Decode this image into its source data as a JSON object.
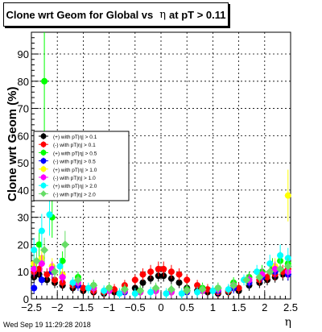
{
  "header": {
    "title_prefix": "Clone wrt Geom for Global vs",
    "title_symbol": "η",
    "title_suffix": "at pT > 0.11"
  },
  "footer": {
    "timestamp": "Wed Sep 19 11:29:28 2018"
  },
  "chart_data": {
    "type": "scatter",
    "title": "Clone wrt Geom for Global vs η at pT > 0.11",
    "xlabel": "η",
    "ylabel": "Clone wrt Geom (%)",
    "xlim": [
      -2.5,
      2.5
    ],
    "ylim": [
      0,
      98
    ],
    "xticks": [
      -2.5,
      -2,
      -1.5,
      -1,
      -0.5,
      0,
      0.5,
      1,
      1.5,
      2,
      2.5
    ],
    "xtick_labels": [
      "−2.5",
      "−2",
      "−1.5",
      "−1",
      "−0.5",
      "0",
      "0.5",
      "1",
      "1.5",
      "2",
      "2.5"
    ],
    "yticks": [
      0,
      10,
      20,
      30,
      40,
      50,
      60,
      70,
      80,
      90
    ],
    "ytick_labels": [
      "0",
      "10",
      "20",
      "30",
      "40",
      "50",
      "60",
      "70",
      "80",
      "90"
    ],
    "grid": true,
    "legend_placement": "center-left",
    "series": [
      {
        "name": "(+) with pT|η| > 0.1",
        "color": "#000000",
        "marker": "circle",
        "x": [
          -2.45,
          -2.35,
          -2.2,
          -2.05,
          -1.9,
          -1.7,
          -1.5,
          -1.3,
          -1.1,
          -0.9,
          -0.7,
          -0.5,
          -0.35,
          -0.2,
          -0.05,
          0.05,
          0.2,
          0.35,
          0.5,
          0.7,
          0.9,
          1.1,
          1.3,
          1.5,
          1.7,
          1.9,
          2.05,
          2.2,
          2.35,
          2.45
        ],
        "y": [
          8,
          9,
          7,
          6,
          5,
          4,
          3,
          2.5,
          2,
          2.5,
          3,
          4,
          6,
          7.5,
          8.5,
          8.5,
          7.5,
          6,
          4,
          3,
          2.5,
          2,
          2.5,
          3,
          5,
          6,
          7,
          8,
          9,
          9
        ]
      },
      {
        "name": "(-) with pT|η| > 0.1",
        "color": "#ff0000",
        "marker": "circle",
        "x": [
          -2.45,
          -2.35,
          -2.2,
          -2.05,
          -1.9,
          -1.7,
          -1.5,
          -1.3,
          -1.1,
          -0.9,
          -0.7,
          -0.5,
          -0.35,
          -0.2,
          -0.05,
          0.05,
          0.2,
          0.35,
          0.5,
          0.7,
          0.9,
          1.1,
          1.3,
          1.5,
          1.7,
          1.9,
          2.05,
          2.2,
          2.35,
          2.45
        ],
        "y": [
          10,
          11,
          9,
          7,
          6,
          5,
          4,
          3,
          2.5,
          3.5,
          5,
          7,
          9,
          10,
          11,
          11,
          10,
          9,
          7,
          5,
          3.5,
          2.5,
          3,
          4,
          6,
          7,
          8,
          9,
          10,
          11
        ]
      },
      {
        "name": "(+) with pT|η| > 0.5",
        "color": "#00ff00",
        "marker": "circle",
        "x": [
          -2.45,
          -2.35,
          -2.25,
          -2.1,
          -1.9,
          -1.6,
          -1.3,
          -1.0,
          -0.7,
          -0.4,
          -0.1,
          0.2,
          0.5,
          0.8,
          1.1,
          1.4,
          1.7,
          1.95,
          2.15,
          2.3,
          2.45
        ],
        "y": [
          12,
          20,
          80,
          30,
          14,
          8,
          5,
          4,
          3.5,
          3,
          3.5,
          3,
          3.5,
          4,
          4,
          6,
          8,
          10,
          12,
          14,
          13
        ]
      },
      {
        "name": "(-) with pT|η| > 0.5",
        "color": "#0000ff",
        "marker": "circle",
        "x": [
          -2.45,
          -2.3,
          -2.1,
          -1.9,
          -1.6,
          -1.3,
          -1.0,
          -0.7,
          -0.4,
          -0.1,
          0.2,
          0.5,
          0.8,
          1.1,
          1.4,
          1.7,
          1.95,
          2.2,
          2.45
        ],
        "y": [
          4,
          7,
          10,
          8,
          5,
          4,
          3,
          2.5,
          2.5,
          3,
          2.5,
          2.5,
          3,
          3,
          4,
          6,
          8,
          10,
          9
        ]
      },
      {
        "name": "(+) with pT|η| > 1.0",
        "color": "#ffff00",
        "marker": "circle",
        "x": [
          -2.45,
          -2.3,
          -2.1,
          -1.9,
          -1.6,
          -1.3,
          -1.0,
          -0.7,
          -0.4,
          -0.1,
          0.2,
          0.5,
          0.8,
          1.1,
          1.4,
          1.7,
          1.95,
          2.2,
          2.45
        ],
        "y": [
          13,
          15,
          12,
          9,
          6,
          4,
          3,
          3,
          2.5,
          3,
          2.5,
          3,
          3,
          3.5,
          5,
          7,
          9,
          12,
          38
        ]
      },
      {
        "name": "(-) with pT|η| > 1.0",
        "color": "#ff00ff",
        "marker": "circle",
        "x": [
          -2.45,
          -2.3,
          -2.1,
          -1.9,
          -1.6,
          -1.3,
          -1.0,
          -0.7,
          -0.4,
          -0.1,
          0.2,
          0.5,
          0.8,
          1.1,
          1.4,
          1.7,
          1.95,
          2.2,
          2.45
        ],
        "y": [
          11,
          13,
          11,
          8,
          6,
          4,
          3,
          3,
          2.5,
          3,
          2.5,
          3,
          3,
          3.5,
          5,
          7,
          9,
          11,
          10
        ]
      },
      {
        "name": "(+) with pT|η| > 2.0",
        "color": "#00ffff",
        "marker": "circle",
        "x": [
          -2.45,
          -2.3,
          -2.15,
          -1.95,
          -1.7,
          -1.4,
          -1.1,
          -0.8,
          -0.5,
          -0.2,
          0.1,
          0.4,
          0.7,
          1.0,
          1.3,
          1.6,
          1.85,
          2.1,
          2.3,
          2.45
        ],
        "y": [
          18,
          25,
          31,
          12,
          6,
          4,
          3,
          2,
          2,
          2.5,
          2,
          2,
          2.5,
          3,
          3.5,
          7,
          10,
          13,
          16,
          15
        ]
      },
      {
        "name": "(-) with pT|η| > 2.0",
        "color": "#66dd66",
        "marker": "diamond",
        "x": [
          -2.4,
          -2.25,
          -2.05,
          -1.85,
          -1.6,
          -1.3,
          -1.0,
          -0.7,
          -0.4,
          -0.1,
          0.2,
          0.5,
          0.8,
          1.1,
          1.4,
          1.65,
          1.9,
          2.1,
          2.3,
          2.45
        ],
        "y": [
          14,
          18,
          10,
          20,
          7,
          5,
          4,
          3.5,
          3,
          4,
          3.5,
          3,
          3.5,
          4,
          5,
          7,
          8,
          10,
          11,
          12
        ]
      }
    ]
  }
}
